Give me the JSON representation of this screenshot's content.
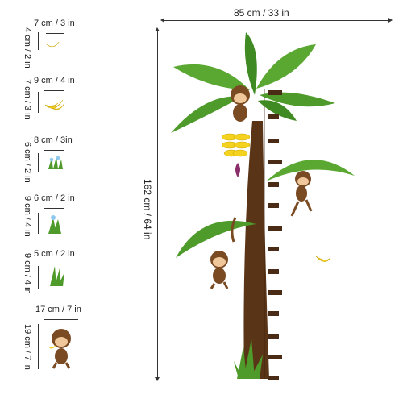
{
  "overall": {
    "width_label": "85 cm / 33 in",
    "height_label": "162 cm / 64 in"
  },
  "items": [
    {
      "name": "banana-single",
      "width_label": "7 cm / 3 in",
      "height_label": "4 cm / 2 in"
    },
    {
      "name": "banana-bunch",
      "width_label": "9 cm / 4 in",
      "height_label": "7 cm / 3 in"
    },
    {
      "name": "grass-flowers",
      "width_label": "8 cm / 3in",
      "height_label": "6 cm / 2 in"
    },
    {
      "name": "flower-grass",
      "width_label": "6 cm / 2 in",
      "height_label": "9 cm / 4 in"
    },
    {
      "name": "grass-tuft",
      "width_label": "5 cm / 2 in",
      "height_label": "9 cm / 4 in"
    },
    {
      "name": "monkey",
      "width_label": "17 cm / 7 in",
      "height_label": "19 cm / 7 in"
    }
  ],
  "colors": {
    "trunk": "#5a3416",
    "leaf": "#4e9a2a",
    "leaf_light": "#7cc242",
    "banana": "#f5d21e",
    "monkey_fur": "#7a4a22",
    "monkey_face": "#f0c79a"
  }
}
